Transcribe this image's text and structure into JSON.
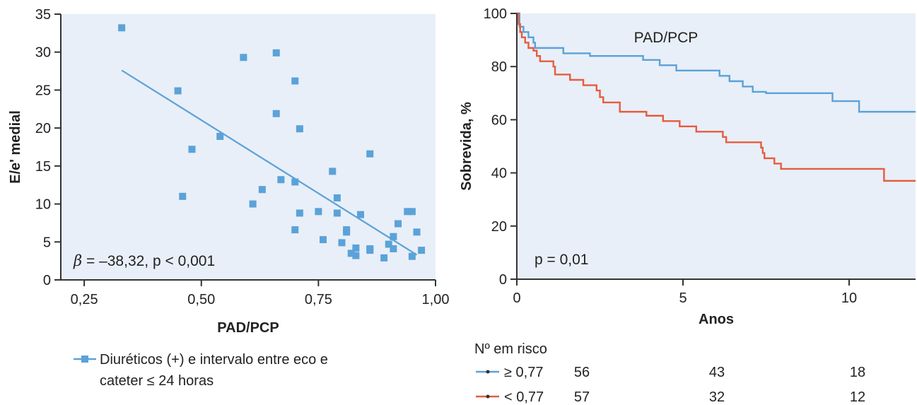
{
  "chart_data": [
    {
      "type": "scatter",
      "xlabel": "PAD/PCP",
      "ylabel": "E/e' medial",
      "xlim": [
        0.2,
        1.0
      ],
      "ylim": [
        0,
        35
      ],
      "x_ticks": [
        0.25,
        0.5,
        0.75,
        1.0
      ],
      "x_tick_labels": [
        "0,25",
        "0,50",
        "0,75",
        "1,00"
      ],
      "y_ticks": [
        0,
        5,
        10,
        15,
        20,
        25,
        30,
        35
      ],
      "y_tick_labels": [
        "0",
        "5",
        "10",
        "15",
        "20",
        "25",
        "30",
        "35"
      ],
      "series": [
        {
          "name": "Diuréticos (+) e intervalo entre eco e cateter ≤ 24 horas",
          "color": "#5ba2d8",
          "points": [
            [
              0.33,
              33.2
            ],
            [
              0.45,
              24.9
            ],
            [
              0.46,
              11.0
            ],
            [
              0.48,
              17.2
            ],
            [
              0.54,
              18.9
            ],
            [
              0.59,
              29.3
            ],
            [
              0.61,
              10.0
            ],
            [
              0.63,
              11.9
            ],
            [
              0.66,
              29.9
            ],
            [
              0.66,
              21.9
            ],
            [
              0.67,
              13.2
            ],
            [
              0.7,
              26.2
            ],
            [
              0.7,
              12.9
            ],
            [
              0.7,
              6.6
            ],
            [
              0.71,
              19.9
            ],
            [
              0.71,
              8.8
            ],
            [
              0.75,
              9.0
            ],
            [
              0.76,
              5.3
            ],
            [
              0.78,
              14.3
            ],
            [
              0.79,
              10.8
            ],
            [
              0.79,
              8.8
            ],
            [
              0.8,
              4.9
            ],
            [
              0.81,
              6.6
            ],
            [
              0.81,
              6.3
            ],
            [
              0.82,
              3.5
            ],
            [
              0.83,
              3.2
            ],
            [
              0.83,
              4.2
            ],
            [
              0.84,
              8.6
            ],
            [
              0.86,
              16.6
            ],
            [
              0.86,
              4.1
            ],
            [
              0.86,
              3.9
            ],
            [
              0.89,
              2.9
            ],
            [
              0.9,
              4.7
            ],
            [
              0.91,
              5.7
            ],
            [
              0.91,
              4.1
            ],
            [
              0.92,
              7.4
            ],
            [
              0.94,
              9.0
            ],
            [
              0.95,
              9.0
            ],
            [
              0.95,
              3.1
            ],
            [
              0.96,
              6.3
            ],
            [
              0.97,
              3.9
            ]
          ]
        }
      ],
      "regression_line": [
        [
          0.33,
          27.6
        ],
        [
          0.96,
          3.3
        ]
      ],
      "annotation": "β = –38,32, p < 0,001",
      "grid": false,
      "legend_position": "bottom"
    },
    {
      "type": "line",
      "subtype": "kaplan-meier",
      "xlabel": "Anos",
      "ylabel": "Sobrevida, %",
      "xlim": [
        0,
        12
      ],
      "ylim": [
        0,
        100
      ],
      "x_ticks": [
        0,
        5,
        10
      ],
      "y_ticks": [
        0,
        20,
        40,
        60,
        80,
        100
      ],
      "title": "PAD/PCP",
      "annotation": "p = 0,01",
      "grid": false,
      "series": [
        {
          "name": "≥ 0,77",
          "color": "#5ba2d8",
          "steps": [
            [
              0,
              100
            ],
            [
              0.08,
              95
            ],
            [
              0.2,
              93
            ],
            [
              0.35,
              91
            ],
            [
              0.5,
              89
            ],
            [
              0.55,
              87
            ],
            [
              1.2,
              87
            ],
            [
              1.4,
              85
            ],
            [
              2.1,
              85
            ],
            [
              2.2,
              84
            ],
            [
              3.7,
              84
            ],
            [
              3.8,
              82.5
            ],
            [
              4.2,
              82.5
            ],
            [
              4.3,
              80.5
            ],
            [
              4.7,
              80.5
            ],
            [
              4.8,
              78.5
            ],
            [
              6.0,
              78.5
            ],
            [
              6.1,
              76.5
            ],
            [
              6.3,
              76.5
            ],
            [
              6.4,
              74.5
            ],
            [
              6.7,
              74.5
            ],
            [
              6.8,
              72.5
            ],
            [
              7.0,
              72.5
            ],
            [
              7.1,
              70.5
            ],
            [
              7.4,
              70.5
            ],
            [
              7.5,
              70
            ],
            [
              9.4,
              70
            ],
            [
              9.5,
              67
            ],
            [
              10.2,
              67
            ],
            [
              10.3,
              63
            ],
            [
              12,
              63
            ]
          ]
        },
        {
          "name": "< 0,77",
          "color": "#e65c3e",
          "steps": [
            [
              0,
              100
            ],
            [
              0.05,
              96
            ],
            [
              0.1,
              93
            ],
            [
              0.15,
              91
            ],
            [
              0.25,
              89
            ],
            [
              0.35,
              87
            ],
            [
              0.5,
              86
            ],
            [
              0.6,
              84
            ],
            [
              0.7,
              82
            ],
            [
              1.0,
              82
            ],
            [
              1.1,
              80
            ],
            [
              1.15,
              77
            ],
            [
              1.5,
              77
            ],
            [
              1.6,
              75
            ],
            [
              1.9,
              75
            ],
            [
              2.0,
              73
            ],
            [
              2.3,
              73
            ],
            [
              2.4,
              71
            ],
            [
              2.5,
              68.5
            ],
            [
              2.6,
              66.5
            ],
            [
              3.0,
              66.5
            ],
            [
              3.1,
              63
            ],
            [
              3.8,
              63
            ],
            [
              3.9,
              61.5
            ],
            [
              4.3,
              61.5
            ],
            [
              4.4,
              59.5
            ],
            [
              4.8,
              59.5
            ],
            [
              4.9,
              57.5
            ],
            [
              5.3,
              57.5
            ],
            [
              5.4,
              55.5
            ],
            [
              6.1,
              55.5
            ],
            [
              6.2,
              53.5
            ],
            [
              6.3,
              51.5
            ],
            [
              7.3,
              51.5
            ],
            [
              7.35,
              49.5
            ],
            [
              7.4,
              47.5
            ],
            [
              7.45,
              45.5
            ],
            [
              7.7,
              45.5
            ],
            [
              7.75,
              43.5
            ],
            [
              7.9,
              43.5
            ],
            [
              7.95,
              41.5
            ],
            [
              11.0,
              41.5
            ],
            [
              11.05,
              37
            ],
            [
              12,
              37
            ]
          ]
        }
      ],
      "risk_table": {
        "title": "Nº em risco",
        "rows": [
          {
            "label": "≥ 0,77",
            "color": "#5ba2d8",
            "values": [
              "56",
              "43",
              "18"
            ]
          },
          {
            "label": "< 0,77",
            "color": "#e65c3e",
            "values": [
              "57",
              "32",
              "12"
            ]
          }
        ]
      }
    }
  ]
}
